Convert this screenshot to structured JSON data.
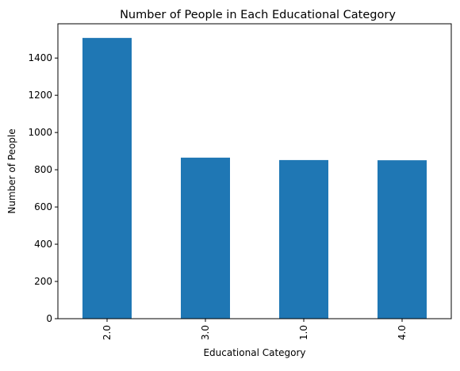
{
  "chart_data": {
    "type": "bar",
    "title": "Number of People in Each Educational Category",
    "xlabel": "Educational Category",
    "ylabel": "Number of People",
    "categories": [
      "2.0",
      "3.0",
      "1.0",
      "4.0"
    ],
    "values": [
      1508,
      865,
      852,
      851
    ],
    "ylim": [
      0,
      1584
    ],
    "yticks": [
      0,
      200,
      400,
      600,
      800,
      1000,
      1200,
      1400
    ],
    "grid": false,
    "legend": "none",
    "bar_color": "#1f77b4",
    "x_tick_rotation": "vertical"
  }
}
